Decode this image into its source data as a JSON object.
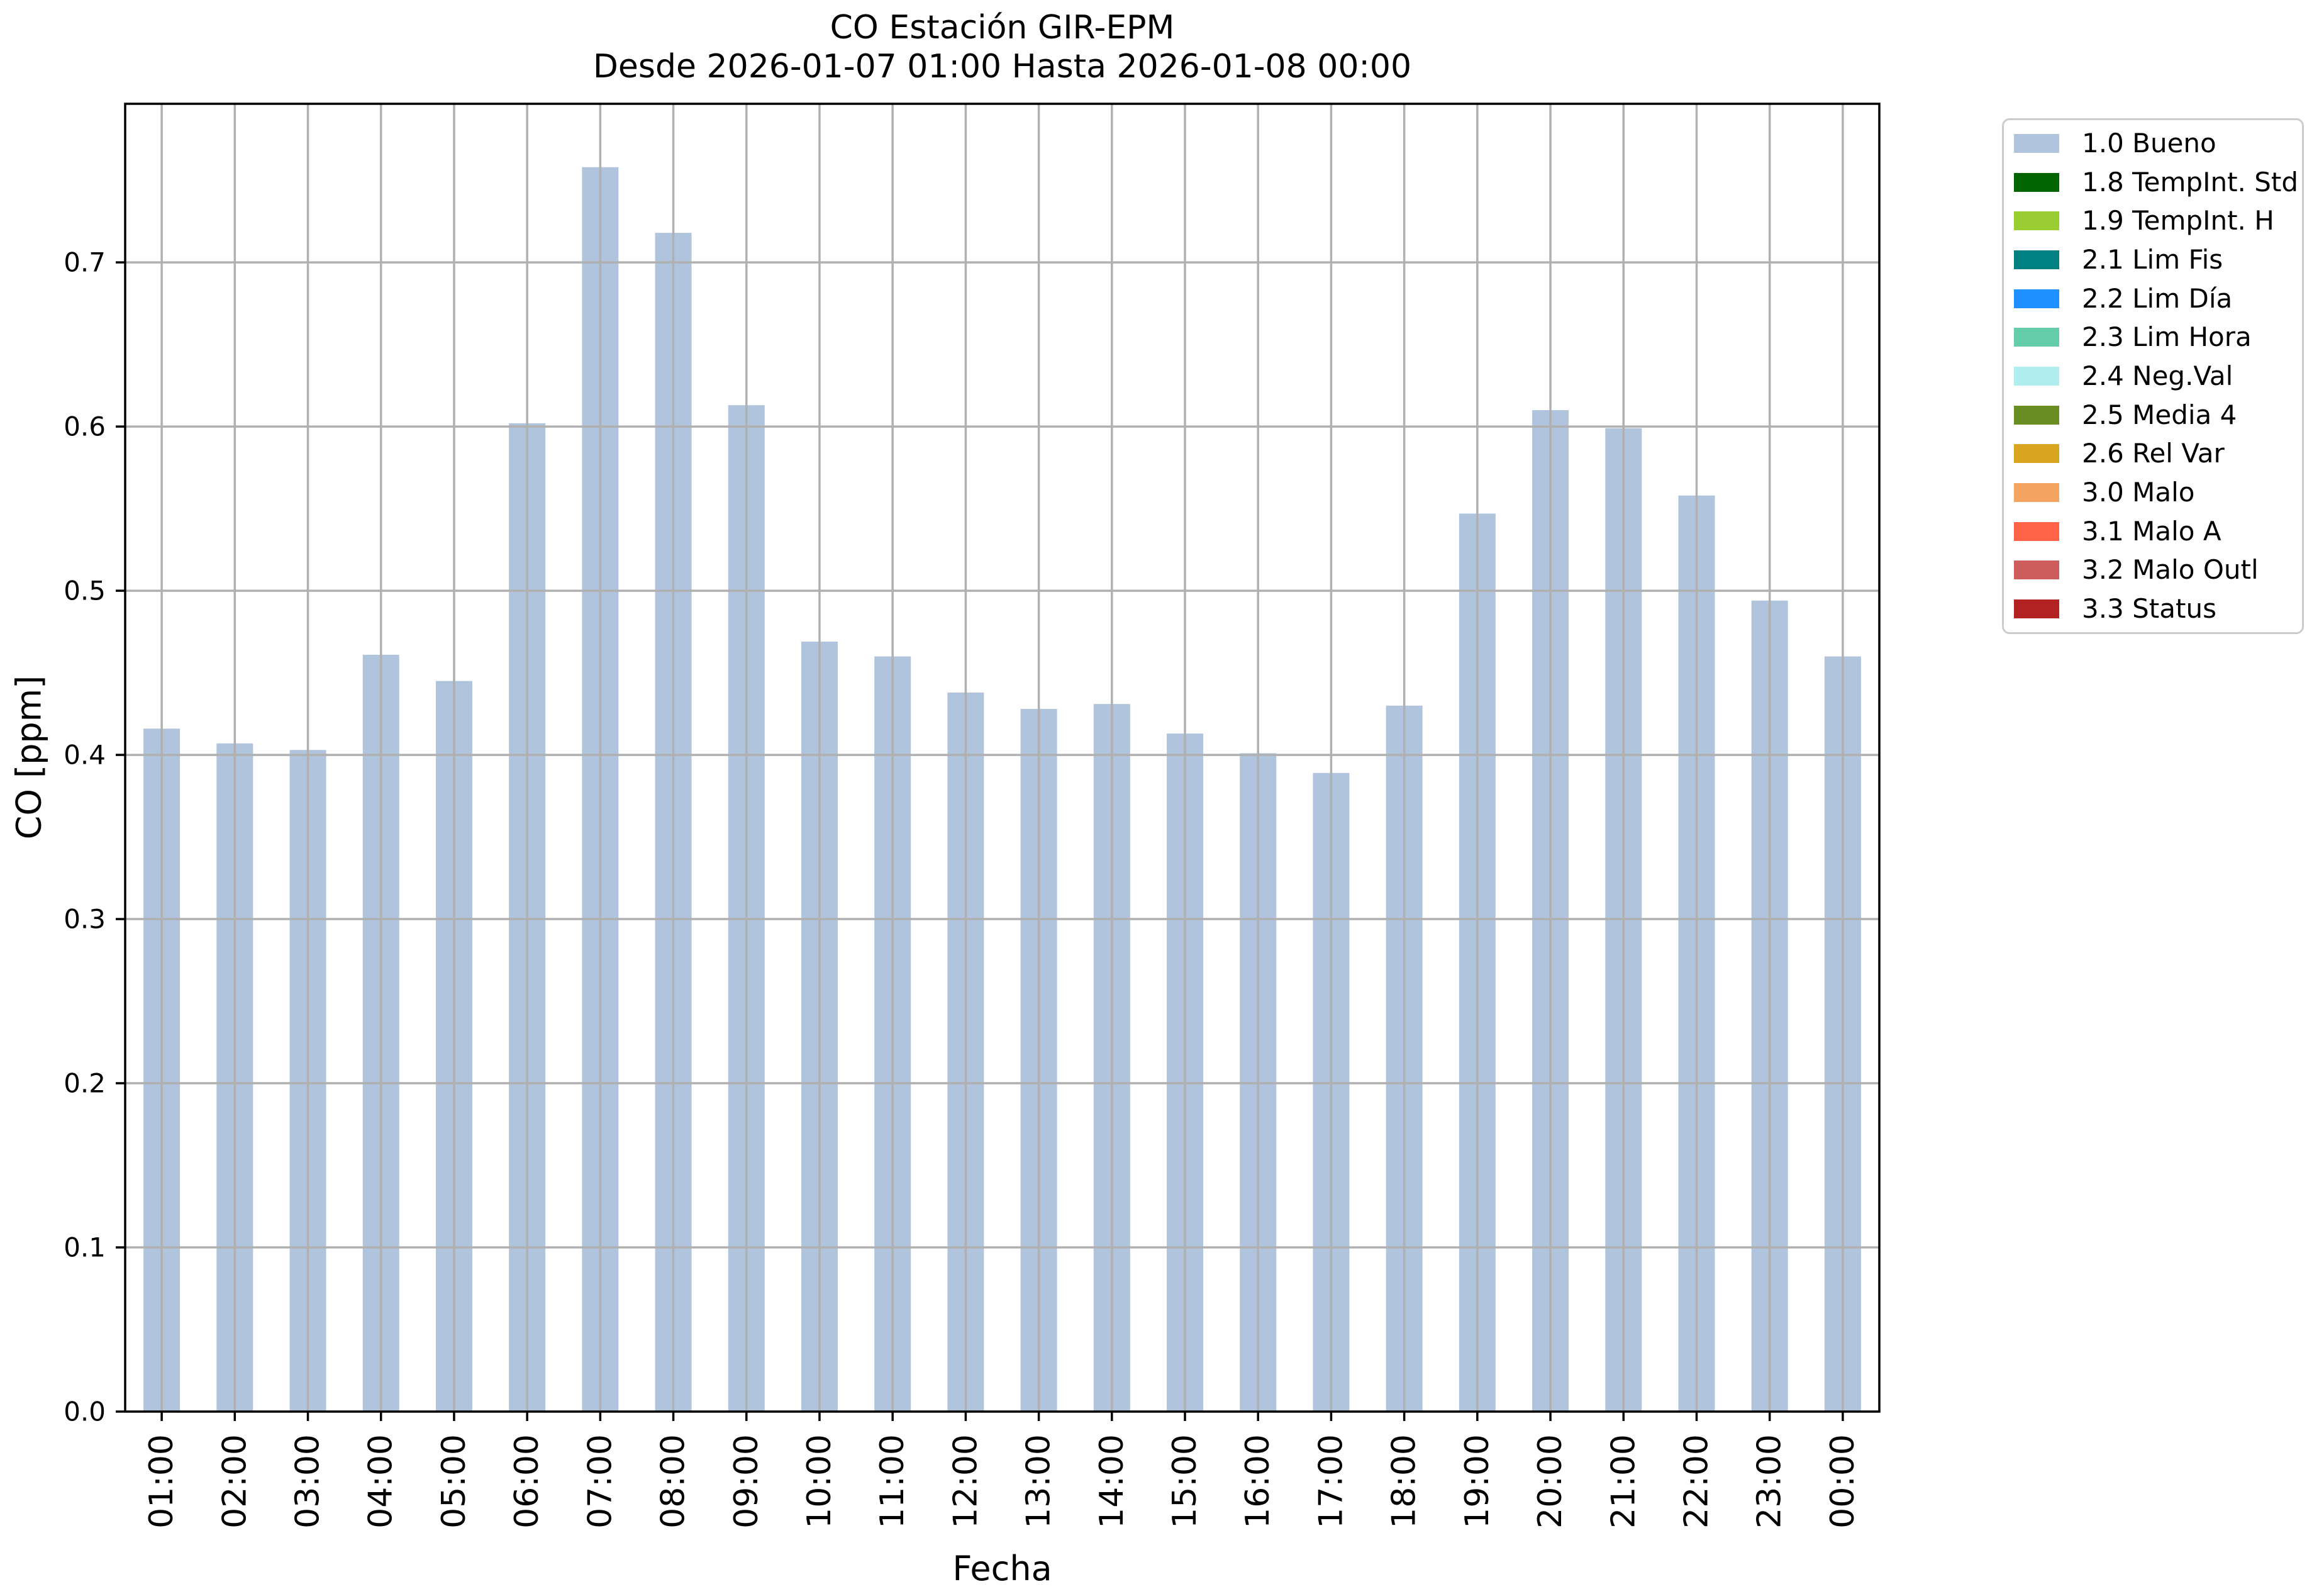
{
  "title": {
    "line1": "CO Estación GIR-EPM",
    "line2": "Desde 2026-01-07 01:00 Hasta 2026-01-08 00:00"
  },
  "chart_data": {
    "type": "bar",
    "title": "CO Estación GIR-EPM\nDesde 2026-01-07 01:00 Hasta 2026-01-08 00:00",
    "xlabel": "Fecha",
    "ylabel": "CO [ppm]",
    "categories": [
      "01:00",
      "02:00",
      "03:00",
      "04:00",
      "05:00",
      "06:00",
      "07:00",
      "08:00",
      "09:00",
      "10:00",
      "11:00",
      "12:00",
      "13:00",
      "14:00",
      "15:00",
      "16:00",
      "17:00",
      "18:00",
      "19:00",
      "20:00",
      "21:00",
      "22:00",
      "23:00",
      "00:00"
    ],
    "values": [
      0.416,
      0.407,
      0.403,
      0.461,
      0.445,
      0.602,
      0.758,
      0.718,
      0.613,
      0.469,
      0.46,
      0.438,
      0.428,
      0.431,
      0.413,
      0.401,
      0.389,
      0.43,
      0.547,
      0.61,
      0.599,
      0.558,
      0.494,
      0.46
    ],
    "series_label": "1.0 Bueno",
    "bar_color": "#b0c4de",
    "grid": true,
    "grid_color": "#b0b0b0",
    "spine_color": "#000000",
    "ylim": [
      0.0,
      0.7966
    ],
    "yticks": [
      0.0,
      0.1,
      0.2,
      0.3,
      0.4,
      0.5,
      0.6,
      0.7
    ],
    "legend_position": "outside-right",
    "legend": [
      {
        "label": "1.0 Bueno",
        "color": "#b0c4de"
      },
      {
        "label": "1.8 TempInt. Std",
        "color": "#006400"
      },
      {
        "label": "1.9 TempInt. H",
        "color": "#9acd32"
      },
      {
        "label": "2.1 Lim Fis",
        "color": "#008080"
      },
      {
        "label": "2.2 Lim Día",
        "color": "#1e90ff"
      },
      {
        "label": "2.3 Lim Hora",
        "color": "#66cdaa"
      },
      {
        "label": "2.4 Neg.Val",
        "color": "#afeeee"
      },
      {
        "label": "2.5 Media 4",
        "color": "#6b8e23"
      },
      {
        "label": "2.6 Rel Var",
        "color": "#daa520"
      },
      {
        "label": "3.0 Malo",
        "color": "#f4a460"
      },
      {
        "label": "3.1 Malo A",
        "color": "#ff6347"
      },
      {
        "label": "3.2 Malo Outl",
        "color": "#cd5c5c"
      },
      {
        "label": "3.3 Status",
        "color": "#b22222"
      }
    ]
  }
}
